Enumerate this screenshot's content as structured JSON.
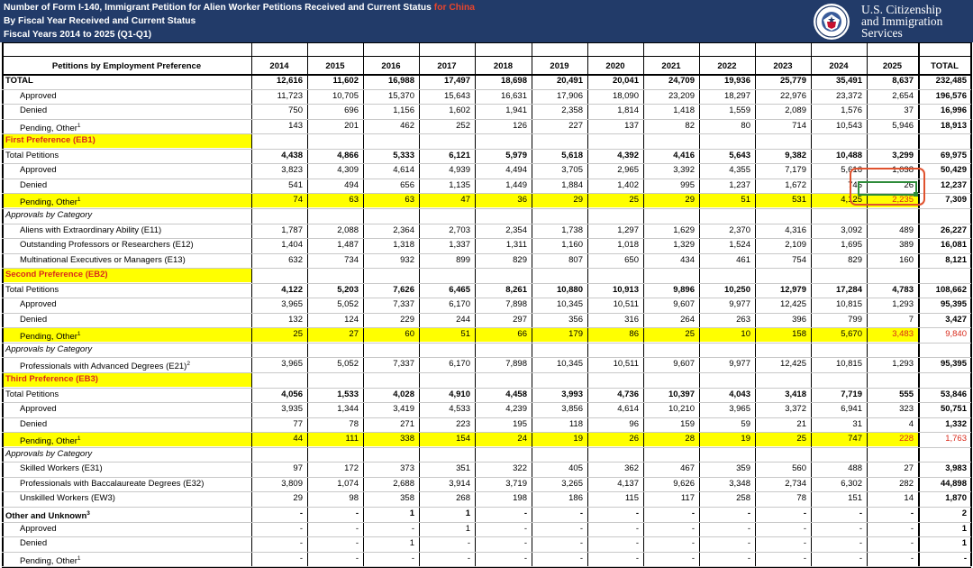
{
  "header": {
    "title": "Number of Form I-140, Immigrant Petition for Alien Worker Petitions Received and Current Status",
    "title_accent": "for China",
    "subtitle": "By Fiscal Year Received and Current Status",
    "period": "Fiscal Years 2014 to 2025 (Q1-Q1)",
    "agency": [
      "U.S. Citizenship",
      "and Immigration",
      "Services"
    ],
    "seal": "dhs-seal-icon"
  },
  "colors": {
    "header_bg": "#223B69",
    "accent": "#E8452C",
    "highlight": "#FFFF00",
    "selection": "#2E8B3A"
  },
  "columns": {
    "label": "Petitions by Employment Preference",
    "years": [
      "2014",
      "2015",
      "2016",
      "2017",
      "2018",
      "2019",
      "2020",
      "2021",
      "2022",
      "2023",
      "2024",
      "2025"
    ],
    "total": "TOTAL"
  },
  "rows": [
    {
      "label": "TOTAL",
      "style": "bold",
      "values": [
        "12,616",
        "11,602",
        "16,988",
        "17,497",
        "18,698",
        "20,491",
        "20,041",
        "24,709",
        "19,936",
        "25,779",
        "35,491",
        "8,637"
      ],
      "total": "232,485"
    },
    {
      "label": "Approved",
      "indent": 1,
      "values": [
        "11,723",
        "10,705",
        "15,370",
        "15,643",
        "16,631",
        "17,906",
        "18,090",
        "23,209",
        "18,297",
        "22,976",
        "23,372",
        "2,654"
      ],
      "total": "196,576"
    },
    {
      "label": "Denied",
      "indent": 1,
      "values": [
        "750",
        "696",
        "1,156",
        "1,602",
        "1,941",
        "2,358",
        "1,814",
        "1,418",
        "1,559",
        "2,089",
        "1,576",
        "37"
      ],
      "total": "16,996"
    },
    {
      "label": "Pending, Other",
      "sup": "1",
      "indent": 1,
      "values": [
        "143",
        "201",
        "462",
        "252",
        "126",
        "227",
        "137",
        "82",
        "80",
        "714",
        "10,543",
        "5,946"
      ],
      "total": "18,913"
    },
    {
      "label": "First Preference (EB1)",
      "style": "section",
      "values": [
        "",
        "",
        "",
        "",
        "",
        "",
        "",
        "",
        "",
        "",
        "",
        ""
      ],
      "total": ""
    },
    {
      "label": "Total Petitions",
      "style": "bold-values",
      "values": [
        "4,438",
        "4,866",
        "5,333",
        "6,121",
        "5,979",
        "5,618",
        "4,392",
        "4,416",
        "5,643",
        "9,382",
        "10,488",
        "3,299"
      ],
      "total": "69,975"
    },
    {
      "label": "Approved",
      "indent": 1,
      "values": [
        "3,823",
        "4,309",
        "4,614",
        "4,939",
        "4,494",
        "3,705",
        "2,965",
        "3,392",
        "4,355",
        "7,179",
        "5,616",
        "1,038"
      ],
      "total": "50,429"
    },
    {
      "label": "Denied",
      "indent": 1,
      "values": [
        "541",
        "494",
        "656",
        "1,135",
        "1,449",
        "1,884",
        "1,402",
        "995",
        "1,237",
        "1,672",
        "745",
        "26"
      ],
      "total": "12,237"
    },
    {
      "label": "Pending, Other",
      "sup": "1",
      "indent": 1,
      "style": "pending",
      "values": [
        "74",
        "63",
        "63",
        "47",
        "36",
        "29",
        "25",
        "29",
        "51",
        "531",
        "4,125",
        "2,235"
      ],
      "total": "7,309",
      "red_last": true
    },
    {
      "label": "Approvals by Category",
      "style": "italic",
      "values": [
        "",
        "",
        "",
        "",
        "",
        "",
        "",
        "",
        "",
        "",
        "",
        ""
      ],
      "total": ""
    },
    {
      "label": "Aliens with Extraordinary Ability (E11)",
      "indent": 1,
      "values": [
        "1,787",
        "2,088",
        "2,364",
        "2,703",
        "2,354",
        "1,738",
        "1,297",
        "1,629",
        "2,370",
        "4,316",
        "3,092",
        "489"
      ],
      "total": "26,227"
    },
    {
      "label": "Outstanding Professors or Researchers (E12)",
      "indent": 1,
      "values": [
        "1,404",
        "1,487",
        "1,318",
        "1,337",
        "1,311",
        "1,160",
        "1,018",
        "1,329",
        "1,524",
        "2,109",
        "1,695",
        "389"
      ],
      "total": "16,081"
    },
    {
      "label": "Multinational Executives or Managers (E13)",
      "indent": 1,
      "values": [
        "632",
        "734",
        "932",
        "899",
        "829",
        "807",
        "650",
        "434",
        "461",
        "754",
        "829",
        "160"
      ],
      "total": "8,121"
    },
    {
      "label": "Second Preference (EB2)",
      "style": "section",
      "values": [
        "",
        "",
        "",
        "",
        "",
        "",
        "",
        "",
        "",
        "",
        "",
        ""
      ],
      "total": ""
    },
    {
      "label": "Total Petitions",
      "style": "bold-values",
      "values": [
        "4,122",
        "5,203",
        "7,626",
        "6,465",
        "8,261",
        "10,880",
        "10,913",
        "9,896",
        "10,250",
        "12,979",
        "17,284",
        "4,783"
      ],
      "total": "108,662"
    },
    {
      "label": "Approved",
      "indent": 1,
      "values": [
        "3,965",
        "5,052",
        "7,337",
        "6,170",
        "7,898",
        "10,345",
        "10,511",
        "9,607",
        "9,977",
        "12,425",
        "10,815",
        "1,293"
      ],
      "total": "95,395"
    },
    {
      "label": "Denied",
      "indent": 1,
      "values": [
        "132",
        "124",
        "229",
        "244",
        "297",
        "356",
        "316",
        "264",
        "263",
        "396",
        "799",
        "7"
      ],
      "total": "3,427"
    },
    {
      "label": "Pending, Other",
      "sup": "1",
      "indent": 1,
      "style": "pending",
      "values": [
        "25",
        "27",
        "60",
        "51",
        "66",
        "179",
        "86",
        "25",
        "10",
        "158",
        "5,670",
        "3,483"
      ],
      "total": "9,840",
      "red_last": true,
      "red_total": true
    },
    {
      "label": "Approvals by Category",
      "style": "italic",
      "values": [
        "",
        "",
        "",
        "",
        "",
        "",
        "",
        "",
        "",
        "",
        "",
        ""
      ],
      "total": ""
    },
    {
      "label": "Professionals with Advanced Degrees (E21)",
      "sup": "2",
      "indent": 1,
      "values": [
        "3,965",
        "5,052",
        "7,337",
        "6,170",
        "7,898",
        "10,345",
        "10,511",
        "9,607",
        "9,977",
        "12,425",
        "10,815",
        "1,293"
      ],
      "total": "95,395"
    },
    {
      "label": "Third Preference (EB3)",
      "style": "section",
      "values": [
        "",
        "",
        "",
        "",
        "",
        "",
        "",
        "",
        "",
        "",
        "",
        ""
      ],
      "total": ""
    },
    {
      "label": "Total Petitions",
      "style": "bold-values",
      "values": [
        "4,056",
        "1,533",
        "4,028",
        "4,910",
        "4,458",
        "3,993",
        "4,736",
        "10,397",
        "4,043",
        "3,418",
        "7,719",
        "555"
      ],
      "total": "53,846"
    },
    {
      "label": "Approved",
      "indent": 1,
      "values": [
        "3,935",
        "1,344",
        "3,419",
        "4,533",
        "4,239",
        "3,856",
        "4,614",
        "10,210",
        "3,965",
        "3,372",
        "6,941",
        "323"
      ],
      "total": "50,751"
    },
    {
      "label": "Denied",
      "indent": 1,
      "values": [
        "77",
        "78",
        "271",
        "223",
        "195",
        "118",
        "96",
        "159",
        "59",
        "21",
        "31",
        "4"
      ],
      "total": "1,332"
    },
    {
      "label": "Pending, Other",
      "sup": "1",
      "indent": 1,
      "style": "pending",
      "values": [
        "44",
        "111",
        "338",
        "154",
        "24",
        "19",
        "26",
        "28",
        "19",
        "25",
        "747",
        "228"
      ],
      "total": "1,763",
      "red_last": true,
      "red_total": true
    },
    {
      "label": "Approvals by Category",
      "style": "italic",
      "values": [
        "",
        "",
        "",
        "",
        "",
        "",
        "",
        "",
        "",
        "",
        "",
        ""
      ],
      "total": ""
    },
    {
      "label": "Skilled Workers (E31)",
      "indent": 1,
      "values": [
        "97",
        "172",
        "373",
        "351",
        "322",
        "405",
        "362",
        "467",
        "359",
        "560",
        "488",
        "27"
      ],
      "total": "3,983"
    },
    {
      "label": "Professionals with Baccalaureate Degrees (E32)",
      "indent": 1,
      "values": [
        "3,809",
        "1,074",
        "2,688",
        "3,914",
        "3,719",
        "3,265",
        "4,137",
        "9,626",
        "3,348",
        "2,734",
        "6,302",
        "282"
      ],
      "total": "44,898"
    },
    {
      "label": "Unskilled Workers (EW3)",
      "indent": 1,
      "values": [
        "29",
        "98",
        "358",
        "268",
        "198",
        "186",
        "115",
        "117",
        "258",
        "78",
        "151",
        "14"
      ],
      "total": "1,870"
    },
    {
      "label": "Other and Unknown",
      "sup": "3",
      "style": "bold",
      "values": [
        "-",
        "-",
        "1",
        "1",
        "-",
        "-",
        "-",
        "-",
        "-",
        "-",
        "-",
        "-"
      ],
      "total": "2"
    },
    {
      "label": "Approved",
      "indent": 1,
      "values": [
        "-",
        "-",
        "-",
        "1",
        "-",
        "-",
        "-",
        "-",
        "-",
        "-",
        "-",
        "-"
      ],
      "total": "1"
    },
    {
      "label": "Denied",
      "indent": 1,
      "values": [
        "-",
        "-",
        "1",
        "-",
        "-",
        "-",
        "-",
        "-",
        "-",
        "-",
        "-",
        "-"
      ],
      "total": "1"
    },
    {
      "label": "Pending, Other",
      "sup": "1",
      "indent": 1,
      "values": [
        "-",
        "-",
        "-",
        "-",
        "-",
        "-",
        "-",
        "-",
        "-",
        "-",
        "-",
        "-"
      ],
      "total": "-"
    }
  ]
}
